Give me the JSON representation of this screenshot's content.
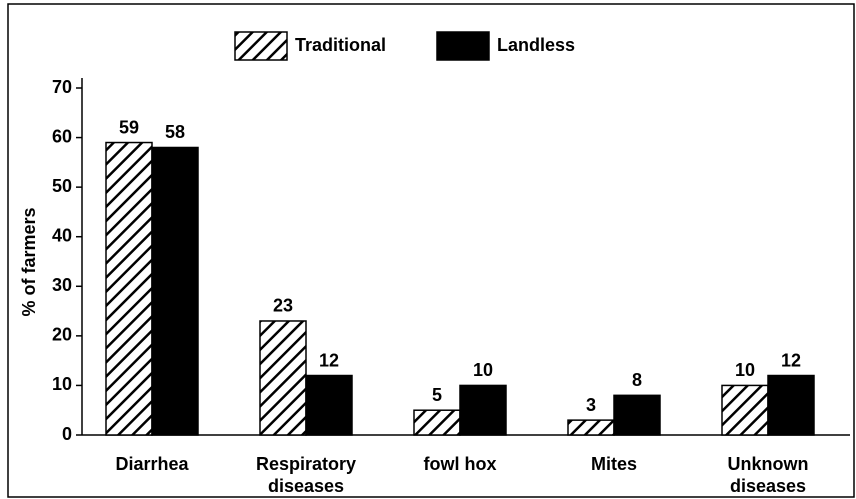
{
  "chart_data": {
    "type": "bar",
    "categories": [
      "Diarrhea",
      "Respiratory\ndiseases",
      "fowl hox",
      "Mites",
      "Unknown\ndiseases"
    ],
    "series": [
      {
        "name": "Traditional",
        "color": "hatch",
        "values": [
          59,
          23,
          5,
          3,
          10
        ]
      },
      {
        "name": "Landless",
        "color": "#000000",
        "values": [
          58,
          12,
          10,
          8,
          12
        ]
      }
    ],
    "y_label": "% of farmers",
    "ylim": [
      0,
      70
    ],
    "yticks": [
      0,
      10,
      20,
      30,
      40,
      50,
      60,
      70
    ],
    "legend": "top"
  }
}
